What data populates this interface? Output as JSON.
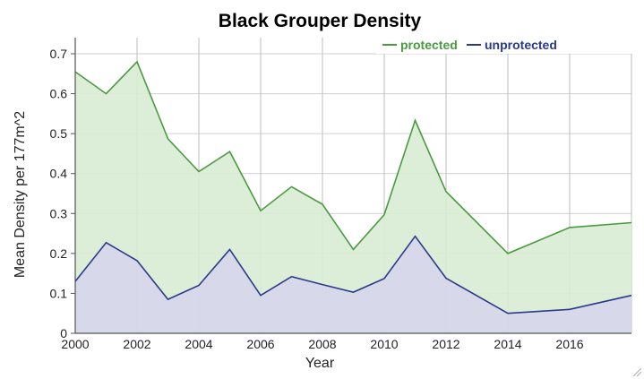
{
  "chart_data": {
    "type": "area",
    "title": "Black Grouper Density",
    "xlabel": "Year",
    "ylabel": "Mean Density per 177m^2",
    "xlim": [
      2000,
      2018
    ],
    "ylim": [
      0,
      0.7
    ],
    "x_ticks": [
      "2000",
      "2002",
      "2004",
      "2006",
      "2008",
      "2010",
      "2012",
      "2014",
      "2016"
    ],
    "y_ticks": [
      "0",
      "0.1",
      "0.2",
      "0.3",
      "0.4",
      "0.5",
      "0.6",
      "0.7"
    ],
    "grid": true,
    "legend_position": "top-right",
    "x": [
      2000,
      2001,
      2002,
      2003,
      2004,
      2005,
      2006,
      2007,
      2008,
      2009,
      2010,
      2011,
      2012,
      2014,
      2016,
      2018
    ],
    "series": [
      {
        "name": "protected",
        "color": "#4a9a40",
        "fill": "#d9ecd4",
        "values": [
          0.655,
          0.6,
          0.68,
          0.487,
          0.405,
          0.455,
          0.307,
          0.367,
          0.323,
          0.21,
          0.297,
          0.533,
          0.355,
          0.2,
          0.265,
          0.277
        ]
      },
      {
        "name": "unprotected",
        "color": "#2a3a8a",
        "fill": "#d6d6ec",
        "values": [
          0.13,
          0.227,
          0.182,
          0.085,
          0.12,
          0.21,
          0.095,
          0.142,
          0.122,
          0.103,
          0.137,
          0.243,
          0.138,
          0.05,
          0.06,
          0.095
        ]
      }
    ]
  }
}
